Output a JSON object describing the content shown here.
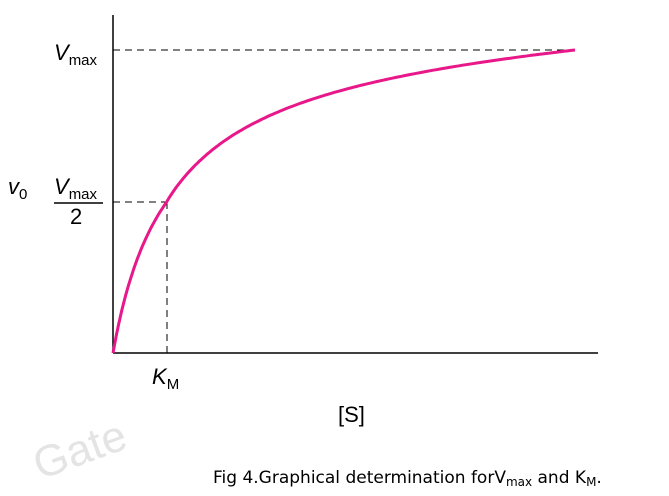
{
  "labels": {
    "vmax": {
      "main": "V",
      "sub": "max"
    },
    "v0": {
      "main": "v",
      "sub": "0"
    },
    "vmax_half": {
      "main": "V",
      "sub": "max",
      "denominator": "2"
    },
    "km": {
      "main": "K",
      "sub": "M"
    },
    "x_axis": "[S]"
  },
  "caption": {
    "text": "Fig 4.Graphical determination forV",
    "sub1": "max",
    "mid": " and K",
    "sub2": "M",
    "end": "."
  },
  "watermark": "Gate"
}
